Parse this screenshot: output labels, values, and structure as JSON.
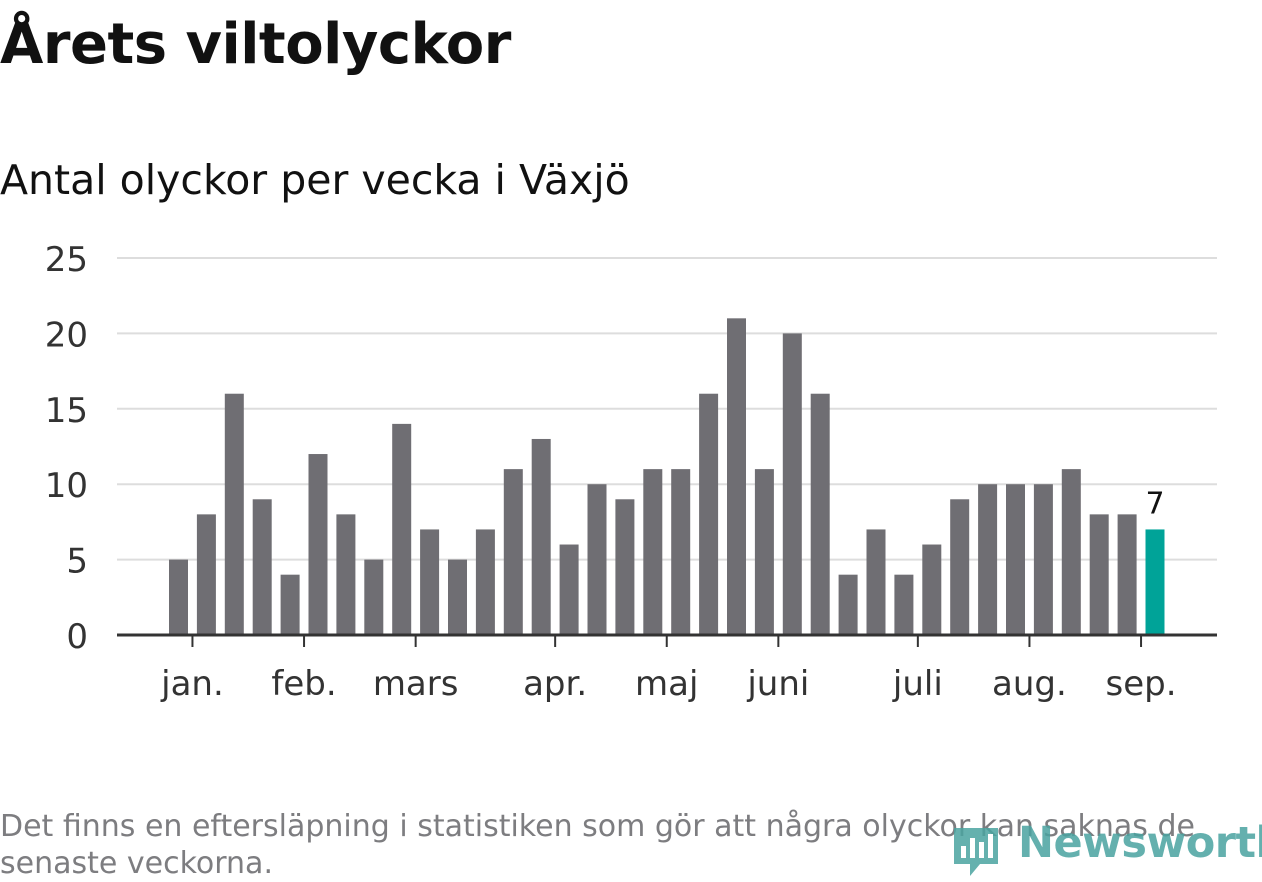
{
  "title": "Årets viltolyckor",
  "subtitle": "Antal olyckor per vecka i Växjö",
  "footnote": "Det finns en eftersläpning i statistiken som gör att några olyckor kan saknas de senaste veckorna.",
  "logo": {
    "text": "Newsworthy",
    "icon": "newsworthy-logo-icon"
  },
  "colors": {
    "bar": "#6f6e73",
    "highlight": "#00a398",
    "grid": "#dddddd",
    "axis": "#333333",
    "text": "#333333"
  },
  "chart_data": {
    "type": "bar",
    "title": "Antal olyckor per vecka i Växjö",
    "xlabel": "",
    "ylabel": "",
    "ylim": [
      0,
      25
    ],
    "yticks": [
      0,
      5,
      10,
      15,
      20,
      25
    ],
    "grid": true,
    "values": [
      5,
      8,
      16,
      9,
      4,
      12,
      8,
      5,
      14,
      7,
      5,
      7,
      11,
      13,
      6,
      10,
      9,
      11,
      11,
      16,
      21,
      11,
      20,
      16,
      4,
      7,
      4,
      6,
      9,
      10,
      10,
      10,
      11,
      8,
      8,
      7
    ],
    "highlight_index": 35,
    "highlight_label": "7",
    "month_labels": [
      {
        "label": "jan.",
        "week": 0.5
      },
      {
        "label": "feb.",
        "week": 4.5
      },
      {
        "label": "mars",
        "week": 8.5
      },
      {
        "label": "apr.",
        "week": 13.5
      },
      {
        "label": "maj",
        "week": 17.5
      },
      {
        "label": "juni",
        "week": 21.5
      },
      {
        "label": "juli",
        "week": 26.5
      },
      {
        "label": "aug.",
        "week": 30.5
      },
      {
        "label": "sep.",
        "week": 34.5
      }
    ]
  }
}
